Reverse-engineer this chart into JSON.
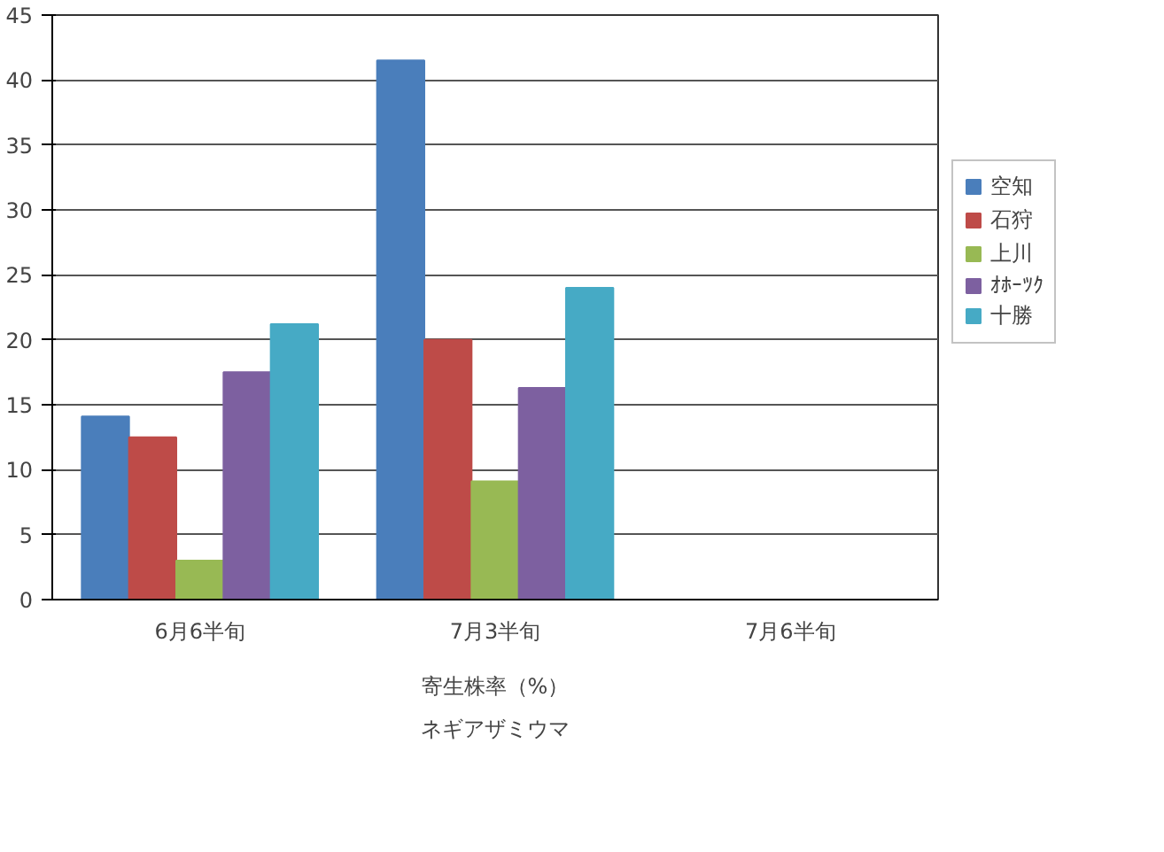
{
  "chart_data": {
    "type": "bar",
    "categories": [
      "6月6半旬",
      "7月3半旬",
      "7月6半旬"
    ],
    "series": [
      {
        "name": "空知",
        "color": "#4a7ebb",
        "values": [
          14.1,
          41.5,
          null
        ]
      },
      {
        "name": "石狩",
        "color": "#be4b48",
        "values": [
          12.5,
          20.0,
          null
        ]
      },
      {
        "name": "上川",
        "color": "#98b954",
        "values": [
          3.0,
          9.1,
          null
        ]
      },
      {
        "name": "ｵﾎｰﾂｸ",
        "color": "#7d60a0",
        "values": [
          17.5,
          16.3,
          null
        ]
      },
      {
        "name": "十勝",
        "color": "#46aac5",
        "values": [
          21.2,
          24.0,
          null
        ]
      }
    ],
    "ylim": [
      0,
      45
    ],
    "yticks": [
      0,
      5,
      10,
      15,
      20,
      25,
      30,
      35,
      40,
      45
    ],
    "xlabel": "寄生株率（%）",
    "annotations": [
      "ネギアザミウマ"
    ],
    "grid": "y",
    "legend": "right"
  }
}
